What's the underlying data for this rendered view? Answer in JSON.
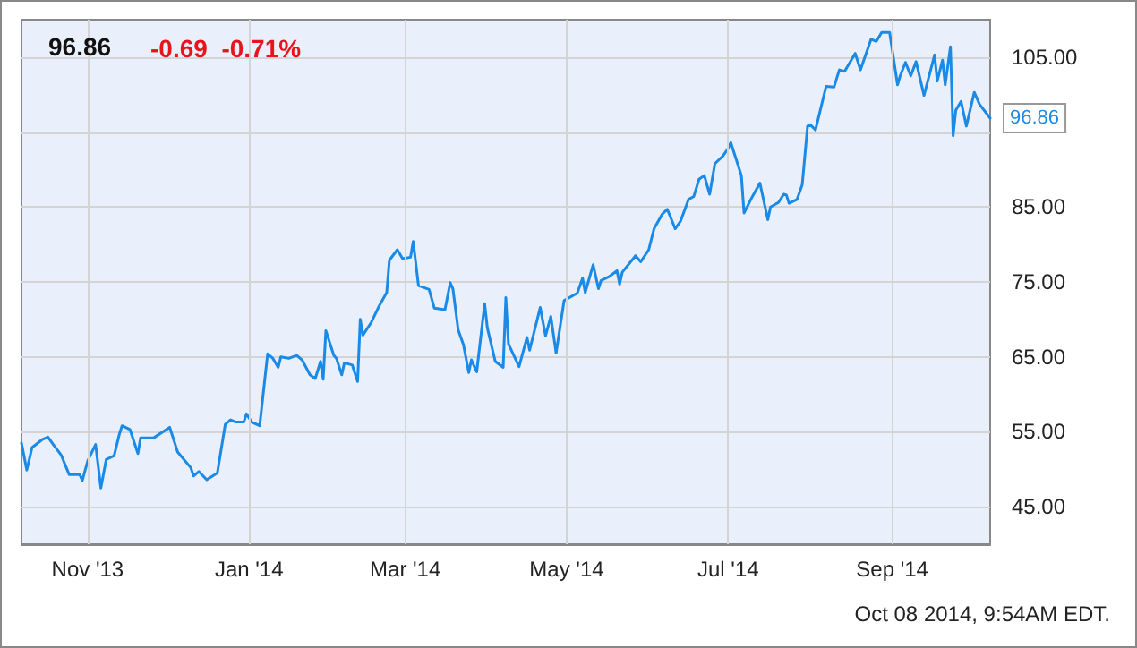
{
  "chart_data": {
    "type": "line",
    "title": "96.86",
    "subtitle": "-0.69  -0.71%",
    "x": [
      "2013-10-07",
      "2013-10-09",
      "2013-10-11",
      "2013-10-15",
      "2013-10-17",
      "2013-10-19",
      "2013-10-22",
      "2013-10-25",
      "2013-10-29",
      "2013-10-30",
      "2013-11-01",
      "2013-11-04",
      "2013-11-06",
      "2013-11-08",
      "2013-11-11",
      "2013-11-13",
      "2013-11-14",
      "2013-11-17",
      "2013-11-20",
      "2013-11-21",
      "2013-11-26",
      "2013-12-02",
      "2013-12-05",
      "2013-12-10",
      "2013-12-11",
      "2013-12-13",
      "2013-12-16",
      "2013-12-20",
      "2013-12-23",
      "2013-12-25",
      "2013-12-27",
      "2013-12-30",
      "2013-12-31",
      "2014-01-02",
      "2014-01-05",
      "2014-01-08",
      "2014-01-10",
      "2014-01-12",
      "2014-01-13",
      "2014-01-16",
      "2014-01-19",
      "2014-01-21",
      "2014-01-24",
      "2014-01-26",
      "2014-01-28",
      "2014-01-29",
      "2014-01-30",
      "2014-02-02",
      "2014-02-03",
      "2014-02-05",
      "2014-02-06",
      "2014-02-09",
      "2014-02-11",
      "2014-02-12",
      "2014-02-13",
      "2014-02-16",
      "2014-02-19",
      "2014-02-22",
      "2014-02-23",
      "2014-02-26",
      "2014-02-28",
      "2014-03-03",
      "2014-03-04",
      "2014-03-06",
      "2014-03-10",
      "2014-03-12",
      "2014-03-16",
      "2014-03-18",
      "2014-03-19",
      "2014-03-21",
      "2014-03-23",
      "2014-03-25",
      "2014-03-26",
      "2014-03-28",
      "2014-03-31",
      "2014-04-01",
      "2014-04-04",
      "2014-04-07",
      "2014-04-08",
      "2014-04-09",
      "2014-04-13",
      "2014-04-16",
      "2014-04-17",
      "2014-04-21",
      "2014-04-23",
      "2014-04-25",
      "2014-04-27",
      "2014-04-30",
      "2014-05-05",
      "2014-05-07",
      "2014-05-08",
      "2014-05-11",
      "2014-05-13",
      "2014-05-14",
      "2014-05-17",
      "2014-05-20",
      "2014-05-21",
      "2014-05-22",
      "2014-05-27",
      "2014-05-29",
      "2014-06-01",
      "2014-06-03",
      "2014-06-06",
      "2014-06-08",
      "2014-06-11",
      "2014-06-13",
      "2014-06-16",
      "2014-06-18",
      "2014-06-20",
      "2014-06-22",
      "2014-06-24",
      "2014-06-26",
      "2014-06-29",
      "2014-07-01",
      "2014-07-02",
      "2014-07-03",
      "2014-07-06",
      "2014-07-07",
      "2014-07-10",
      "2014-07-13",
      "2014-07-16",
      "2014-07-17",
      "2014-07-20",
      "2014-07-22",
      "2014-07-23",
      "2014-07-24",
      "2014-07-27",
      "2014-07-29",
      "2014-07-31",
      "2014-08-01",
      "2014-08-03",
      "2014-08-07",
      "2014-08-10",
      "2014-08-12",
      "2014-08-14",
      "2014-08-18",
      "2014-08-20",
      "2014-08-24",
      "2014-08-26",
      "2014-08-28",
      "2014-08-31",
      "2014-09-03",
      "2014-09-04",
      "2014-09-06",
      "2014-09-08",
      "2014-09-10",
      "2014-09-13",
      "2014-09-17",
      "2014-09-18",
      "2014-09-20",
      "2014-09-21",
      "2014-09-23",
      "2014-09-24",
      "2014-09-25",
      "2014-09-27",
      "2014-09-29",
      "2014-10-02",
      "2014-10-04",
      "2014-10-08"
    ],
    "series": [
      {
        "color": "#1a8ae6",
        "values": [
          53.5,
          49.9,
          52.9,
          54.0,
          54.3,
          53.3,
          51.9,
          49.3,
          49.3,
          48.5,
          51.1,
          53.3,
          47.5,
          51.3,
          51.8,
          54.7,
          55.8,
          55.3,
          52.1,
          54.2,
          54.2,
          55.6,
          52.3,
          50.2,
          49.1,
          49.7,
          48.6,
          49.5,
          56.0,
          56.6,
          56.3,
          56.3,
          57.4,
          56.3,
          55.8,
          65.4,
          64.8,
          63.6,
          65.0,
          64.8,
          65.2,
          64.6,
          62.6,
          62.1,
          64.4,
          62.0,
          68.5,
          65.2,
          64.8,
          62.6,
          64.2,
          63.9,
          61.7,
          70.0,
          67.9,
          69.5,
          71.7,
          73.6,
          77.9,
          79.3,
          78.1,
          78.3,
          80.4,
          74.5,
          74.0,
          71.5,
          71.3,
          74.9,
          74.1,
          68.6,
          66.6,
          62.9,
          64.6,
          63.0,
          72.1,
          68.9,
          64.4,
          63.6,
          72.9,
          66.7,
          63.7,
          67.6,
          65.9,
          71.6,
          67.8,
          70.4,
          65.5,
          72.5,
          73.5,
          75.5,
          73.6,
          77.3,
          74.1,
          75.2,
          75.7,
          76.5,
          74.7,
          76.3,
          78.5,
          77.7,
          79.3,
          82.1,
          84.0,
          84.7,
          82.1,
          83.1,
          86.0,
          86.4,
          88.7,
          89.2,
          86.7,
          90.8,
          91.8,
          92.8,
          93.6,
          92.5,
          89.2,
          84.2,
          86.3,
          88.2,
          83.3,
          85.0,
          85.6,
          86.7,
          86.6,
          85.5,
          86.0,
          88.0,
          95.8,
          96.0,
          95.3,
          101.1,
          101.0,
          103.3,
          103.1,
          105.5,
          103.3,
          107.4,
          107.1,
          108.3,
          108.3,
          101.3,
          102.5,
          104.3,
          102.5,
          104.4,
          99.9,
          105.3,
          101.8,
          104.6,
          101.3,
          106.4,
          94.5,
          97.9,
          99.1,
          95.8,
          100.3,
          98.7,
          96.86
        ]
      }
    ],
    "xlim": [
      "2013-10-07",
      "2014-10-08"
    ],
    "xticks": [
      {
        "value": "2013-11-01",
        "label": "Nov '13"
      },
      {
        "value": "2014-01-01",
        "label": "Jan '14"
      },
      {
        "value": "2014-03-01",
        "label": "Mar '14"
      },
      {
        "value": "2014-05-01",
        "label": "May '14"
      },
      {
        "value": "2014-07-01",
        "label": "Jul '14"
      },
      {
        "value": "2014-09-01",
        "label": "Sep '14"
      }
    ],
    "ylim": [
      40,
      110
    ],
    "yticks": [
      {
        "value": 45,
        "label": "45.00"
      },
      {
        "value": 55,
        "label": "55.00"
      },
      {
        "value": 65,
        "label": "65.00"
      },
      {
        "value": 75,
        "label": "75.00"
      },
      {
        "value": 85,
        "label": "85.00"
      },
      {
        "value": 95,
        "label": null
      },
      {
        "value": 105,
        "label": "105.00"
      }
    ],
    "grid": true,
    "marker": "none",
    "line_style": "solid",
    "annotations": [
      {
        "text": "96.86",
        "x": "2014-10-08",
        "y": 96.86
      },
      "Oct 08 2014, 9:54AM EDT."
    ]
  }
}
